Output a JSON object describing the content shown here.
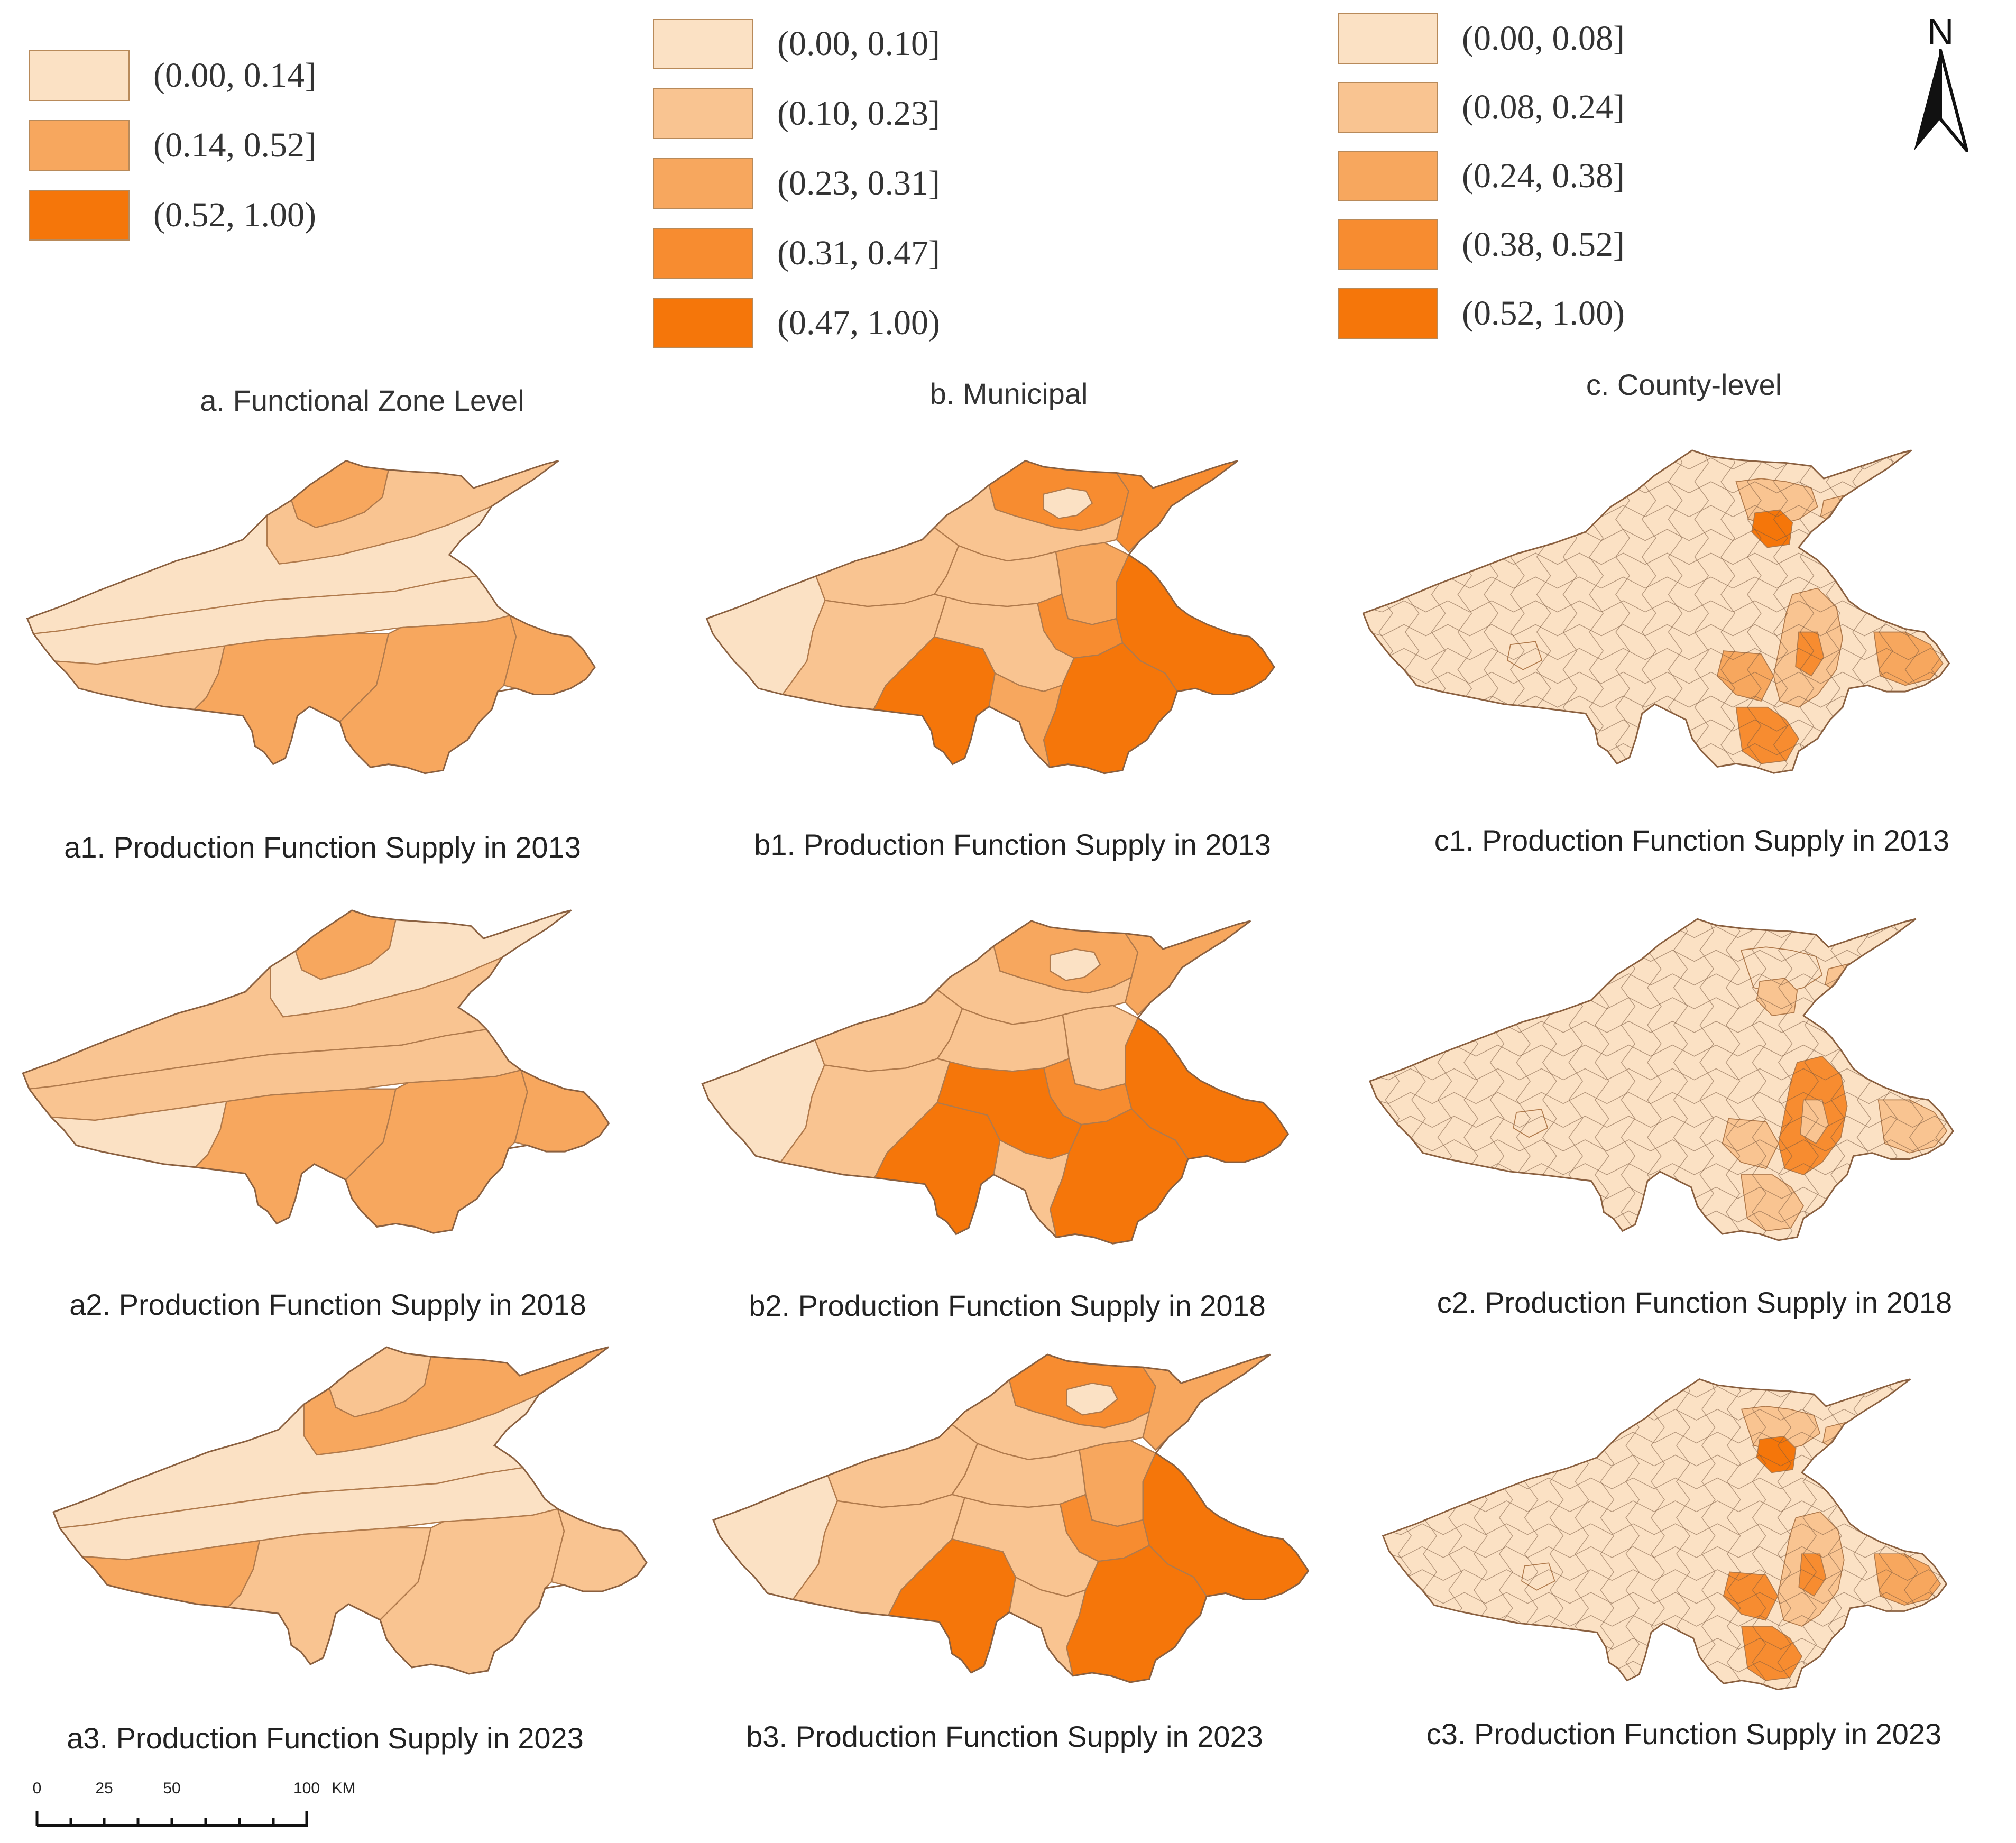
{
  "colors": {
    "c1": "#fbe1c4",
    "c2": "#f9c491",
    "c3": "#f7a75e",
    "c4": "#f78c30",
    "c5": "#f5760a",
    "border": "#b07a4c"
  },
  "north_arrow": {
    "label": "N",
    "icon": "north-arrow-icon"
  },
  "columns": [
    {
      "id": "a",
      "title": "a.  Functional Zone Level",
      "legend": [
        {
          "label": "(0.00, 0.14]",
          "color": "#fbe1c4"
        },
        {
          "label": "(0.14, 0.52]",
          "color": "#f7a75e"
        },
        {
          "label": "(0.52, 1.00)",
          "color": "#f5760a"
        }
      ],
      "maps": [
        {
          "caption": "a1. Production Function Supply in 2013"
        },
        {
          "caption": "a2. Production Function Supply in 2018"
        },
        {
          "caption": "a3. Production Function Supply in 2023"
        }
      ]
    },
    {
      "id": "b",
      "title": "b.  Municipal",
      "legend": [
        {
          "label": "(0.00, 0.10]",
          "color": "#fbe1c4"
        },
        {
          "label": "(0.10, 0.23]",
          "color": "#f9c491"
        },
        {
          "label": "(0.23, 0.31]",
          "color": "#f7a75e"
        },
        {
          "label": "(0.31, 0.47]",
          "color": "#f78c30"
        },
        {
          "label": "(0.47, 1.00)",
          "color": "#f5760a"
        }
      ],
      "maps": [
        {
          "caption": "b1. Production Function Supply in 2013"
        },
        {
          "caption": "b2. Production Function Supply in 2018"
        },
        {
          "caption": "b3. Production Function Supply in 2023"
        }
      ]
    },
    {
      "id": "c",
      "title": "c.  County-level",
      "legend": [
        {
          "label": "(0.00, 0.08]",
          "color": "#fbe1c4"
        },
        {
          "label": "(0.08, 0.24]",
          "color": "#f9c491"
        },
        {
          "label": "(0.24, 0.38]",
          "color": "#f7a75e"
        },
        {
          "label": "(0.38, 0.52]",
          "color": "#f78c30"
        },
        {
          "label": "(0.52, 1.00)",
          "color": "#f5760a"
        }
      ],
      "maps": [
        {
          "caption": "c1. Production Function Supply in 2013"
        },
        {
          "caption": "c2. Production Function Supply in 2018"
        },
        {
          "caption": "c3. Production Function Supply in 2023"
        }
      ]
    }
  ],
  "scale_bar": {
    "ticks": [
      "0",
      "25",
      "50",
      "100"
    ],
    "tick_values": [
      0,
      25,
      50,
      100
    ],
    "unit": "KM"
  },
  "map_classes": {
    "a1": [
      2,
      1,
      0,
      0,
      1,
      2,
      2,
      2
    ],
    "a2": [
      2,
      0,
      1,
      1,
      0,
      2,
      2,
      2
    ],
    "a3": [
      1,
      2,
      0,
      0,
      2,
      1,
      1,
      1
    ],
    "b1": [
      3,
      0,
      3,
      4,
      2,
      1,
      0,
      1,
      1,
      1,
      3,
      4,
      4,
      1,
      2
    ],
    "b2": [
      2,
      0,
      2,
      4,
      1,
      1,
      0,
      1,
      1,
      1,
      3,
      4,
      4,
      4,
      1
    ],
    "b3": [
      3,
      0,
      2,
      4,
      2,
      1,
      0,
      1,
      1,
      1,
      3,
      4,
      4,
      1,
      1
    ],
    "c1": [
      0,
      1,
      4,
      1,
      0,
      1,
      3,
      2,
      2,
      3
    ],
    "c2": [
      0,
      0,
      1,
      1,
      0,
      3,
      1,
      1,
      1,
      1
    ],
    "c3": [
      0,
      1,
      4,
      1,
      0,
      1,
      3,
      3,
      2,
      3
    ]
  }
}
